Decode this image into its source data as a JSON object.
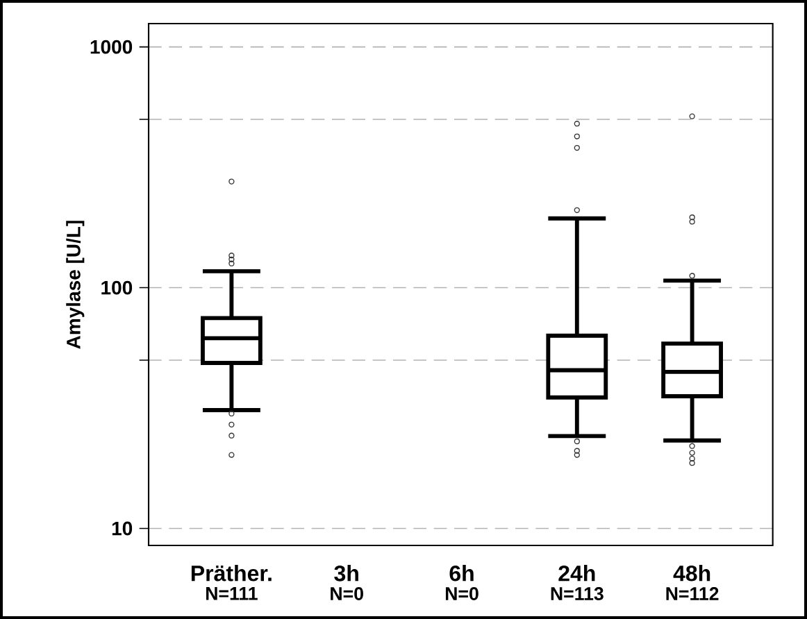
{
  "chart_data": {
    "type": "box",
    "ylabel": "Amylase [U/L]",
    "categories": [
      "Präther.",
      "3h",
      "6h",
      "24h",
      "48h"
    ],
    "annotations": [
      "N=111",
      "N=0",
      "N=0",
      "N=113",
      "N=112"
    ],
    "series": [
      {
        "color": "#000000",
        "boxes": [
          {
            "low": 31,
            "q1": 48.7,
            "median": 61.7,
            "q3": 74.8,
            "high": 117,
            "outliers": [
              276,
              136,
              131,
              126,
              30,
              27,
              24.3,
              20.2
            ]
          },
          null,
          null,
          {
            "low": 24.2,
            "q1": 35,
            "median": 45.4,
            "q3": 63.2,
            "high": 194,
            "outliers": [
              480,
              425,
              381,
              210,
              23,
              21,
              20.2
            ]
          },
          {
            "low": 23.2,
            "q1": 35.4,
            "median": 44.7,
            "q3": 58.6,
            "high": 107,
            "outliers": [
              515,
              196,
              188,
              112,
              22,
              20.6,
              19.5,
              18.7
            ]
          }
        ]
      }
    ],
    "log": true,
    "ylim": [
      8.5,
      1250
    ],
    "yticks": [
      10,
      {
        "value": 50,
        "label": null
      },
      100,
      {
        "value": 500,
        "label": null
      },
      1000
    ],
    "grid": "y",
    "marker": "circle"
  }
}
